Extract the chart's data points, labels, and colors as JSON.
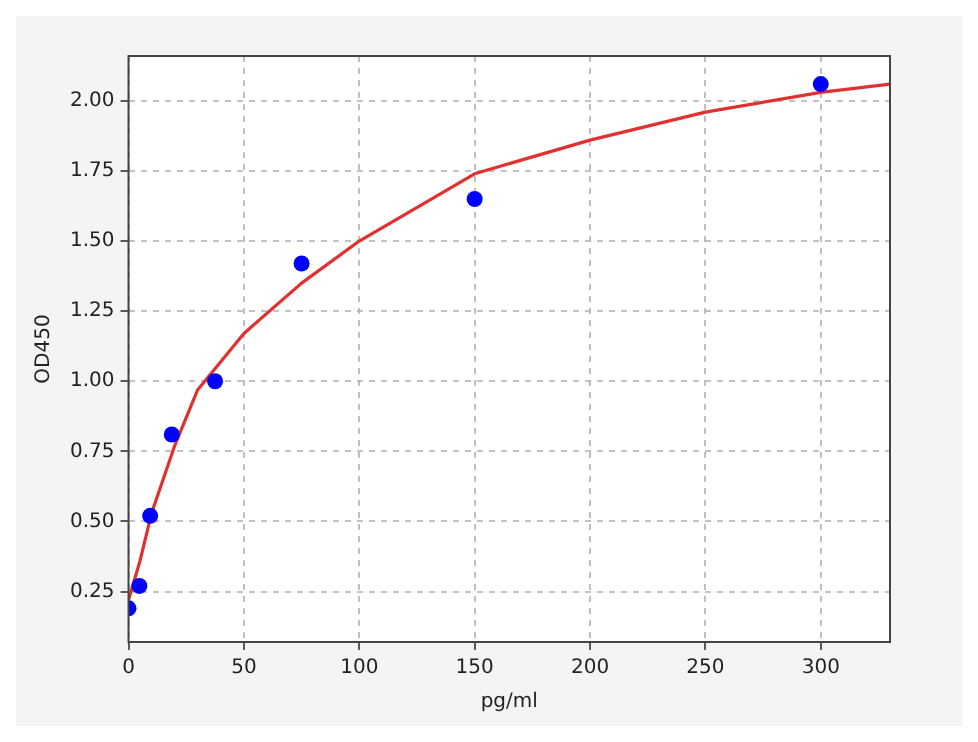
{
  "chart_data": {
    "type": "scatter",
    "xlabel": "pg/ml",
    "ylabel": "OD450",
    "xlim": [
      0,
      330
    ],
    "ylim": [
      0.07,
      2.16
    ],
    "xticks": [
      0,
      50,
      100,
      150,
      200,
      250,
      300
    ],
    "yticks": [
      {
        "value": 0.25,
        "label": "0.25"
      },
      {
        "value": 0.5,
        "label": "0.50"
      },
      {
        "value": 0.75,
        "label": "0.75"
      },
      {
        "value": 1.0,
        "label": "1.00"
      },
      {
        "value": 1.25,
        "label": "1.25"
      },
      {
        "value": 1.5,
        "label": "1.50"
      },
      {
        "value": 1.75,
        "label": "1.75"
      },
      {
        "value": 2.0,
        "label": "2.00"
      }
    ],
    "grid": true,
    "legend": false,
    "marker": "circle",
    "series": [
      {
        "type": "scatter",
        "color": "#0000ff",
        "x": [
          0,
          4.69,
          9.38,
          18.75,
          37.5,
          75,
          150,
          300
        ],
        "values": [
          0.19,
          0.27,
          0.52,
          0.81,
          1.0,
          1.42,
          1.65,
          2.06
        ]
      },
      {
        "type": "line",
        "color": "#e03030",
        "marker": "none",
        "x": [
          0,
          5,
          10,
          20,
          30,
          50,
          75,
          100,
          150,
          200,
          250,
          300,
          330
        ],
        "values": [
          0.22,
          0.36,
          0.53,
          0.77,
          0.97,
          1.17,
          1.35,
          1.5,
          1.74,
          1.86,
          1.96,
          2.03,
          2.06
        ]
      }
    ]
  }
}
